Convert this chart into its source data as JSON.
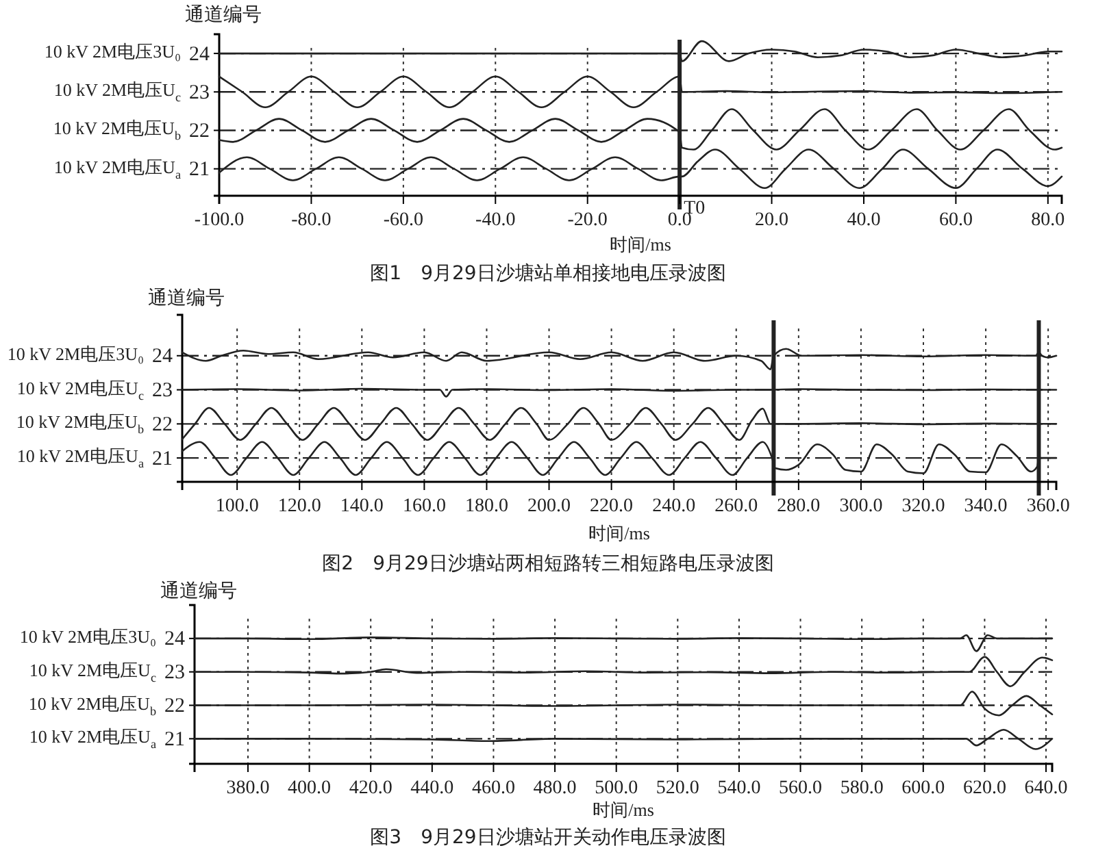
{
  "chart_data": [
    {
      "type": "line",
      "title": "图1　9月29日沙塘站单相接地电压录波图",
      "xlabel": "时间/ms",
      "ylabel": "通道编号",
      "xlim": [
        -100,
        83
      ],
      "xticks": [
        {
          "value": -100,
          "label": "-100.0"
        },
        {
          "value": -80,
          "label": "-80.0"
        },
        {
          "value": -60,
          "label": "-60.0"
        },
        {
          "value": -40,
          "label": "-40.0"
        },
        {
          "value": -20,
          "label": "-20.0"
        },
        {
          "value": 0,
          "label": "0.0"
        },
        {
          "value": 20,
          "label": "20.0"
        },
        {
          "value": 40,
          "label": "40.0"
        },
        {
          "value": 60,
          "label": "60.0"
        },
        {
          "value": 80,
          "label": "80.0"
        }
      ],
      "ylim": [
        20.3,
        24.5
      ],
      "yticks": [
        21,
        22,
        23,
        24
      ],
      "grid": "x",
      "legend": false,
      "marker": "none",
      "line_style": "solid",
      "ref_lines": [
        {
          "axis": "y",
          "value": 24,
          "line_style": "dashed"
        },
        {
          "axis": "y",
          "value": 23,
          "line_style": "dashed"
        },
        {
          "axis": "y",
          "value": 22,
          "line_style": "dashed"
        },
        {
          "axis": "y",
          "value": 21,
          "line_style": "dashed"
        },
        {
          "axis": "x",
          "value": 0,
          "label": "T0",
          "line_style": "solid"
        }
      ],
      "series": [
        {
          "name": "10 kV 2M电压3U₀",
          "color": "#222222",
          "x": [
            -100,
            0,
            0.5,
            4.8,
            10.7,
            15,
            20,
            25,
            30,
            35,
            40,
            45,
            50,
            55,
            60,
            65,
            70,
            75,
            80,
            83
          ],
          "values": [
            24,
            24,
            23.8,
            24.32,
            23.8,
            24.0,
            24.1,
            24.05,
            23.9,
            23.95,
            24.1,
            24.05,
            23.9,
            23.95,
            24.1,
            24.0,
            23.9,
            23.95,
            24.05,
            24.05
          ]
        },
        {
          "name": "10 kV 2M电压U$_{c}$",
          "color": "#222222",
          "x": [
            -100,
            -95,
            -90,
            -85,
            -80,
            -75,
            -70,
            -65,
            -60,
            -55,
            -50,
            -45,
            -40,
            -35,
            -30,
            -25,
            -20,
            -15,
            -10,
            -5,
            0,
            0.5,
            10,
            20,
            30,
            40,
            50,
            60,
            70,
            83
          ],
          "values": [
            23.4,
            23,
            22.6,
            23,
            23.4,
            23,
            22.6,
            23,
            23.4,
            23,
            22.6,
            23,
            23.4,
            23,
            22.6,
            23,
            23.4,
            23,
            22.6,
            23,
            23.4,
            23.0,
            23.02,
            22.99,
            23.01,
            23.02,
            22.98,
            22.99,
            22.97,
            23.0
          ]
        },
        {
          "name": "10 kV 2M电压U$_{b}$",
          "color": "#222222",
          "x": [
            -100,
            -97,
            -92,
            -87,
            -82,
            -77,
            -72,
            -67,
            -62,
            -57,
            -52,
            -47,
            -42,
            -37,
            -32,
            -27,
            -22,
            -17,
            -12,
            -7,
            0,
            0.5,
            3,
            7,
            11.3,
            16,
            21,
            26,
            31.5,
            36,
            41,
            46,
            51.5,
            56,
            61,
            66,
            71.5,
            76,
            81.5,
            83
          ],
          "values": [
            21.75,
            21.7,
            22,
            22.3,
            22,
            21.7,
            22,
            22.3,
            22,
            21.7,
            22,
            22.3,
            22,
            21.7,
            22,
            22.3,
            22,
            21.7,
            22,
            22.3,
            21.95,
            21.55,
            21.5,
            22,
            22.55,
            22,
            21.5,
            22,
            22.55,
            22,
            21.5,
            22,
            22.55,
            22,
            21.5,
            22,
            22.55,
            22,
            21.5,
            21.55
          ]
        },
        {
          "name": "10 kV 2M电压U$_{a}$",
          "color": "#222222",
          "x": [
            -100,
            -94,
            -89,
            -84,
            -79,
            -74,
            -69,
            -64,
            -59,
            -54,
            -49,
            -44,
            -39,
            -34,
            -29,
            -24,
            -19,
            -14,
            -9,
            -4,
            0,
            0.5,
            4,
            7.7,
            13,
            18.5,
            23,
            28,
            33.5,
            39,
            44,
            48.5,
            54,
            60,
            64.5,
            69,
            74.5,
            80,
            83
          ],
          "values": [
            20.9,
            21.3,
            21,
            20.7,
            21,
            21.3,
            21,
            20.7,
            21,
            21.3,
            21,
            20.7,
            21,
            21.3,
            21,
            20.7,
            21,
            21.3,
            21,
            20.7,
            20.8,
            20.8,
            21.2,
            21.5,
            21,
            20.5,
            21,
            21.5,
            21,
            20.5,
            21,
            21.5,
            21,
            20.5,
            21,
            21.5,
            21,
            20.55,
            20.8
          ]
        }
      ]
    },
    {
      "type": "line",
      "title": "图2　9月29日沙塘站两相短路转三相短路电压录波图",
      "xlabel": "时间/ms",
      "ylabel": "通道编号",
      "xlim": [
        82.4,
        362.6
      ],
      "xticks": [
        {
          "value": 100,
          "label": "100.0"
        },
        {
          "value": 120,
          "label": "120.0"
        },
        {
          "value": 140,
          "label": "140.0"
        },
        {
          "value": 160,
          "label": "160.0"
        },
        {
          "value": 180,
          "label": "180.0"
        },
        {
          "value": 200,
          "label": "200.0"
        },
        {
          "value": 220,
          "label": "220.0"
        },
        {
          "value": 240,
          "label": "240.0"
        },
        {
          "value": 260,
          "label": "260.0"
        },
        {
          "value": 280,
          "label": "280.0"
        },
        {
          "value": 300,
          "label": "300.0"
        },
        {
          "value": 320,
          "label": "320.0"
        },
        {
          "value": 340,
          "label": "340.0"
        },
        {
          "value": 360,
          "label": "360.0"
        }
      ],
      "ylim": [
        20.3,
        25.2
      ],
      "yticks": [
        21,
        22,
        23,
        24
      ],
      "grid": "x",
      "legend": false,
      "marker": "none",
      "line_style": "solid",
      "ref_lines": [
        {
          "axis": "y",
          "value": 24,
          "line_style": "dashed"
        },
        {
          "axis": "y",
          "value": 23,
          "line_style": "dashed"
        },
        {
          "axis": "y",
          "value": 22,
          "line_style": "dashed"
        },
        {
          "axis": "y",
          "value": 21,
          "line_style": "dashed"
        },
        {
          "axis": "x",
          "value": 272,
          "line_style": "solid"
        },
        {
          "axis": "x",
          "value": 357,
          "line_style": "solid"
        }
      ],
      "series": [
        {
          "name": "10 kV 2M电压3U₀",
          "color": "#222222",
          "x": [
            82.4,
            90,
            95,
            102,
            110,
            118,
            126,
            142,
            150,
            160,
            167,
            172,
            180,
            200,
            210,
            220,
            230,
            240,
            250,
            260,
            268,
            271,
            272,
            276,
            281,
            300,
            320,
            340,
            356,
            357,
            358,
            360,
            362.6
          ],
          "values": [
            24.1,
            23.85,
            24.0,
            24.15,
            24.05,
            24.1,
            23.9,
            24.1,
            23.95,
            24.1,
            23.85,
            24.1,
            23.85,
            24.1,
            23.9,
            24.1,
            23.85,
            24.1,
            23.85,
            24.0,
            23.85,
            23.6,
            24.0,
            24.2,
            24.0,
            24.02,
            23.98,
            24.02,
            24.0,
            24.1,
            24.0,
            23.95,
            24.0
          ]
        },
        {
          "name": "10 kV 2M电压U$_{c}$",
          "color": "#222222",
          "x": [
            82.4,
            100,
            120,
            140,
            160,
            165,
            167,
            169,
            180,
            200,
            220,
            240,
            260,
            270,
            280,
            300,
            320,
            340,
            362.6
          ],
          "values": [
            23.0,
            23.02,
            22.98,
            23.03,
            23.0,
            23.0,
            22.8,
            23.0,
            23.02,
            22.99,
            23.02,
            22.97,
            23.0,
            23.0,
            23.02,
            23.0,
            22.99,
            23.01,
            23.0
          ]
        },
        {
          "name": "10 kV 2M电压U$_{b}$",
          "color": "#222222",
          "x": [
            82.4,
            86.5,
            91,
            96,
            101,
            106,
            111,
            116,
            121,
            126,
            131,
            136,
            141,
            146,
            151,
            156,
            161,
            166,
            171,
            176,
            181,
            186,
            191,
            196,
            200,
            206,
            211,
            216,
            220,
            226,
            231,
            236,
            240.5,
            246,
            251,
            256,
            261,
            265,
            268.5,
            271,
            280,
            300,
            320,
            340,
            362.6
          ],
          "values": [
            21.55,
            22,
            22.47,
            22,
            21.53,
            22,
            22.47,
            22,
            21.53,
            22,
            22.47,
            22,
            21.53,
            22,
            22.47,
            22,
            21.53,
            22,
            22.47,
            22,
            21.53,
            22,
            22.47,
            22,
            21.53,
            22,
            22.47,
            22,
            21.53,
            22,
            22.47,
            22,
            21.53,
            22,
            22.47,
            22,
            21.53,
            22.1,
            22.45,
            22.0,
            22.0,
            22.02,
            21.99,
            22.01,
            22.0
          ]
        },
        {
          "name": "10 kV 2M电压U$_{a}$",
          "color": "#222222",
          "x": [
            82.4,
            88,
            93,
            98,
            103,
            108,
            113,
            118,
            123,
            128,
            133,
            138,
            143,
            148,
            153,
            158,
            163,
            168,
            173,
            178,
            183,
            188,
            193,
            198,
            203,
            208,
            213,
            218,
            223,
            228,
            233,
            238.5,
            243.5,
            248.5,
            253.5,
            258.8,
            263.5,
            268.5,
            271.5,
            272.5,
            276,
            280,
            286,
            291,
            295,
            300,
            305,
            310,
            315,
            320,
            325,
            330,
            335,
            340,
            345,
            350,
            354.5,
            356.5,
            357,
            362.6
          ],
          "values": [
            21.2,
            21.47,
            21,
            20.5,
            21,
            21.47,
            21,
            20.5,
            21,
            21.47,
            21,
            20.5,
            21,
            21.47,
            21,
            20.5,
            21,
            21.47,
            21,
            20.5,
            21,
            21.47,
            21,
            20.5,
            21,
            21.47,
            21,
            20.5,
            21,
            21.47,
            21,
            20.5,
            21,
            21.47,
            21,
            20.5,
            21,
            21.47,
            21.0,
            20.7,
            20.65,
            20.8,
            21.4,
            21.1,
            20.65,
            20.6,
            21.4,
            21.1,
            20.6,
            20.55,
            21.4,
            21.1,
            20.6,
            20.58,
            21.4,
            21.05,
            20.6,
            20.75,
            21.0,
            21.0
          ]
        }
      ]
    },
    {
      "type": "line",
      "title": "图3　9月29日沙塘站开关动作电压录波图",
      "xlabel": "时间/ms",
      "ylabel": "通道编号",
      "xlim": [
        362.6,
        642
      ],
      "xticks": [
        {
          "value": 380,
          "label": "380.0"
        },
        {
          "value": 400,
          "label": "400.0"
        },
        {
          "value": 420,
          "label": "420.0"
        },
        {
          "value": 440,
          "label": "440.0"
        },
        {
          "value": 460,
          "label": "460.0"
        },
        {
          "value": 480,
          "label": "480.0"
        },
        {
          "value": 500,
          "label": "500.0"
        },
        {
          "value": 520,
          "label": "520.0"
        },
        {
          "value": 540,
          "label": "540.0"
        },
        {
          "value": 560,
          "label": "560.0"
        },
        {
          "value": 580,
          "label": "580.0"
        },
        {
          "value": 600,
          "label": "600.0"
        },
        {
          "value": 620,
          "label": "620.0"
        },
        {
          "value": 640,
          "label": "640.0"
        }
      ],
      "ylim": [
        20.25,
        25.0
      ],
      "yticks": [
        21,
        22,
        23,
        24
      ],
      "grid": "x",
      "legend": false,
      "marker": "none",
      "line_style": "solid",
      "ref_lines": [
        {
          "axis": "y",
          "value": 24,
          "line_style": "dashed"
        },
        {
          "axis": "y",
          "value": 23,
          "line_style": "dashed"
        },
        {
          "axis": "y",
          "value": 22,
          "line_style": "dashed"
        },
        {
          "axis": "y",
          "value": 21,
          "line_style": "dashed"
        }
      ],
      "series": [
        {
          "name": "10 kV 2M电压3U₀",
          "color": "#222222",
          "x": [
            362.6,
            380,
            400,
            420,
            440,
            460,
            480,
            500,
            520,
            540,
            560,
            580,
            600,
            612,
            614,
            617.3,
            621,
            624,
            630,
            642
          ],
          "values": [
            24.0,
            24.0,
            23.98,
            24.03,
            24.0,
            23.99,
            24.01,
            24.0,
            23.99,
            24.01,
            24.0,
            23.98,
            24.0,
            24.0,
            24.1,
            23.62,
            24.1,
            24.0,
            24.0,
            24.0
          ]
        },
        {
          "name": "10 kV 2M电压U$_{c}$",
          "color": "#222222",
          "x": [
            362.6,
            380,
            400,
            410,
            420,
            425,
            435,
            450,
            470,
            490,
            510,
            530,
            550,
            570,
            590,
            610,
            615,
            620,
            624,
            628.4,
            633,
            638.8,
            642
          ],
          "values": [
            23.0,
            23.0,
            22.98,
            22.95,
            23.0,
            23.08,
            22.97,
            23.0,
            22.98,
            23.02,
            22.98,
            22.99,
            22.96,
            23.0,
            22.98,
            23.0,
            23.0,
            23.45,
            23.0,
            22.57,
            23.0,
            23.43,
            23.35
          ]
        },
        {
          "name": "10 kV 2M电压U$_{b}$",
          "color": "#222222",
          "x": [
            362.6,
            400,
            440,
            480,
            520,
            560,
            600,
            612.1,
            615.9,
            620,
            624.7,
            629,
            633.6,
            638,
            642
          ],
          "values": [
            22.0,
            22.0,
            22.02,
            21.98,
            22.02,
            22.0,
            22.0,
            22.0,
            22.41,
            21.9,
            21.7,
            22.0,
            22.28,
            22.0,
            21.73
          ]
        },
        {
          "name": "10 kV 2M电压U$_{a}$",
          "color": "#222222",
          "x": [
            362.6,
            400,
            440,
            458,
            480,
            520,
            560,
            600,
            614,
            617.3,
            621,
            626.2,
            631,
            636.6,
            642
          ],
          "values": [
            21.0,
            21.0,
            20.98,
            20.93,
            21.0,
            20.98,
            21.0,
            21.0,
            21.0,
            20.8,
            21.0,
            21.27,
            21.0,
            20.69,
            21.0
          ]
        }
      ]
    }
  ]
}
